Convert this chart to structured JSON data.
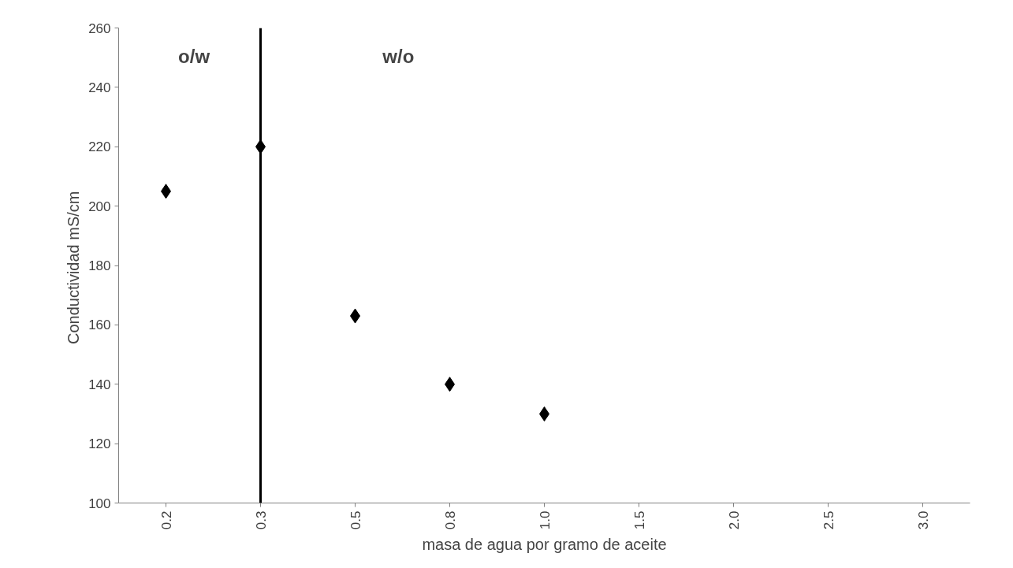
{
  "chart_data": {
    "type": "scatter",
    "categories": [
      "0.2",
      "0.3",
      "0.5",
      "0.8",
      "1.0",
      "1.5",
      "2.0",
      "2.5",
      "3.0"
    ],
    "series": [
      {
        "color": "#000000",
        "values": [
          205,
          220,
          163,
          140,
          130,
          null,
          null,
          null,
          null
        ]
      }
    ],
    "marker": "diamond",
    "xlabel": "masa de agua por gramo de aceite",
    "ylabel": "Conductividad  mS/cm",
    "ylim": [
      100,
      260
    ],
    "yticks": [
      100,
      120,
      140,
      160,
      180,
      200,
      220,
      240,
      260
    ],
    "grid": false,
    "ref_lines": [
      {
        "axis": "x",
        "value": "0.3",
        "color": "#000000"
      }
    ],
    "annotations": [
      "o/w",
      "w/o"
    ]
  }
}
